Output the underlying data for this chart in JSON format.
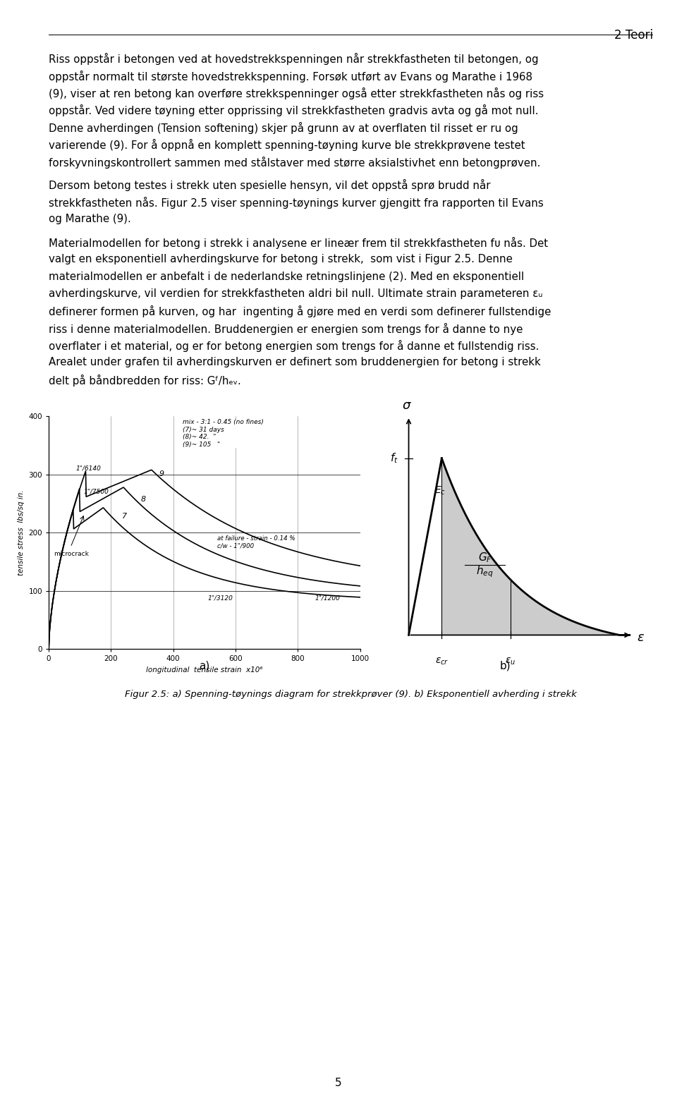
{
  "page_title": "2 Teori",
  "page_number": "5",
  "para1_lines": [
    "Riss oppstår i betongen ved at hovedstrekkspenningen når strekkfastheten til betongen, og",
    "oppstår normalt til største hovedstrekkspenning. Forsøk utført av Evans og Marathe i 1968",
    "(9), viser at ren betong kan overføre strekkspenninger også etter strekkfastheten nås og riss",
    "oppstår. Ved videre tøyning etter opprissing vil strekkfastheten gradvis avta og gå mot null.",
    "Denne avherdingen (⁠Tension softening⁠) skjer på grunn av at overflaten til risset er ru og",
    "varierende (9). For å oppnå en komplett spenning-tøyning kurve ble strekkprøvene testet",
    "forskyvningskontrollert sammen med stålstaver med større aksialstivhet enn betongprøven."
  ],
  "para1_italic_word": "Tension softening",
  "para2_lines": [
    "Dersom betong testes i strekk uten spesielle hensyn, vil det oppstå sprø brudd når",
    "strekkfastheten nås. Figur 2.5 viser spenning-tøynings kurver gjengitt fra rapporten til Evans",
    "og Marathe (9)."
  ],
  "para3_lines": [
    "Materialmodellen for betong i strekk i analysene er lineær frem til strekkfastheten fᴜ nås. Det",
    "valgt en eksponentiell avherdingskurve for betong i strekk,  som vist i Figur 2.5. Denne",
    "materialmodellen er anbefalt i de nederlandske retningslinjene (2). Med en eksponentiell",
    "avherdingskurve, vil verdien for strekkfastheten aldri bil null. Ultimate strain parameteren εᵤ",
    "definerer formen på kurven, og har  ingenting å gjøre med en verdi som definerer fullstendige",
    "riss i denne materialmodellen. Bruddenergien er energien som trengs for å danne to nye",
    "overflater i et material, og er for betong energien som trengs for å danne et fullstendig riss.",
    "Arealet under grafen til avherdingskurven er definert som bruddenergien for betong i strekk",
    "delt på båndbredden for riss: Gᶠ/hₑᵥ."
  ],
  "para3_italic_word": "Ultimate strain",
  "fig_caption": "Figur 2.5: a) Spenning-tøynings diagram for strekkprøver (9). b) Eksponentiell avherding i strekk",
  "background_color": "#ffffff",
  "text_color": "#000000"
}
